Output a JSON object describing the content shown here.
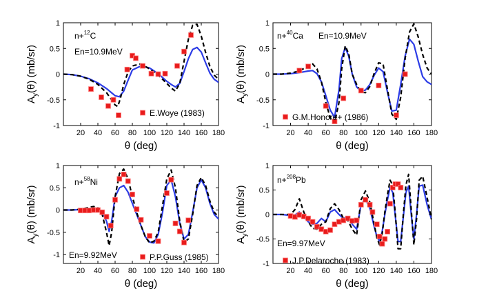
{
  "chart_data": [
    {
      "type": "line",
      "nucleus": "n+",
      "nucleus_mass": "12",
      "nucleus_symbol": "C",
      "energy_label": "En=10.9MeV",
      "legend": "E.Woye (1983)",
      "xlabel": "θ (deg)",
      "ylabel_main": "A",
      "ylabel_sub": "y",
      "ylabel_rest": "(θ) (mb/sr)",
      "xlim": [
        0,
        180
      ],
      "ylim": [
        -1,
        1
      ],
      "xticks": [
        20,
        40,
        60,
        80,
        100,
        120,
        140,
        160,
        180
      ],
      "yticks": [
        -1,
        -0.5,
        0,
        0.5,
        1
      ],
      "series": [
        {
          "name": "blue solid",
          "x": [
            0,
            10,
            20,
            30,
            40,
            50,
            55,
            60,
            65,
            70,
            75,
            80,
            90,
            100,
            110,
            120,
            125,
            130,
            135,
            140,
            145,
            150,
            155,
            160,
            165,
            170,
            175,
            180
          ],
          "y": [
            0,
            -0.01,
            -0.04,
            -0.09,
            -0.17,
            -0.28,
            -0.35,
            -0.42,
            -0.44,
            -0.33,
            -0.12,
            0.08,
            0.16,
            0.12,
            0.01,
            -0.14,
            -0.2,
            -0.25,
            -0.18,
            0.05,
            0.3,
            0.48,
            0.52,
            0.43,
            0.22,
            0.02,
            -0.1,
            -0.16
          ]
        },
        {
          "name": "black dashed",
          "x": [
            0,
            10,
            20,
            30,
            40,
            50,
            55,
            60,
            63,
            66,
            70,
            75,
            80,
            90,
            100,
            110,
            120,
            125,
            130,
            135,
            140,
            145,
            150,
            155,
            160,
            165,
            170,
            175,
            180
          ],
          "y": [
            0,
            -0.01,
            -0.04,
            -0.1,
            -0.2,
            -0.36,
            -0.48,
            -0.6,
            -0.63,
            -0.48,
            -0.2,
            0.04,
            0.16,
            0.2,
            0.1,
            -0.02,
            -0.18,
            -0.27,
            -0.33,
            -0.18,
            0.25,
            0.68,
            0.95,
            0.97,
            0.74,
            0.42,
            0.15,
            -0.02,
            -0.1
          ]
        },
        {
          "name": "E.Woye (1983)",
          "x": [
            32,
            44,
            52,
            58,
            64,
            74,
            80,
            84,
            92,
            102,
            110,
            118,
            132,
            140,
            148
          ],
          "y": [
            -0.29,
            -0.45,
            -0.62,
            -0.5,
            -0.8,
            0.09,
            0.36,
            0.31,
            0.16,
            0.01,
            0.0,
            0.01,
            0.16,
            0.44,
            0.76
          ]
        }
      ]
    },
    {
      "type": "line",
      "nucleus": "n+",
      "nucleus_mass": "40",
      "nucleus_symbol": "Ca",
      "energy_label": "En=10.9MeV",
      "legend": "G.M.Honore+ (1986)",
      "xlabel": "θ (deg)",
      "ylabel_main": "A",
      "ylabel_sub": "y",
      "ylabel_rest": "(θ) (mb/sr)",
      "xlim": [
        0,
        180
      ],
      "ylim": [
        -1,
        1
      ],
      "xticks": [
        20,
        40,
        60,
        80,
        100,
        120,
        140,
        160,
        180
      ],
      "yticks": [
        -1,
        -0.5,
        0,
        0.5,
        1
      ],
      "series": [
        {
          "name": "blue solid",
          "x": [
            0,
            10,
            20,
            30,
            40,
            45,
            50,
            55,
            60,
            65,
            70,
            75,
            78,
            82,
            86,
            90,
            95,
            100,
            105,
            110,
            115,
            120,
            125,
            130,
            135,
            140,
            145,
            150,
            155,
            160,
            165,
            170,
            175,
            180
          ],
          "y": [
            0,
            0,
            0.01,
            0.03,
            0.06,
            0.07,
            0.01,
            -0.15,
            -0.42,
            -0.7,
            -0.84,
            -0.3,
            0.3,
            0.52,
            0.35,
            0.0,
            -0.25,
            -0.33,
            -0.31,
            -0.2,
            -0.02,
            0.12,
            0.05,
            -0.35,
            -0.72,
            -0.7,
            -0.2,
            0.35,
            0.68,
            0.58,
            0.25,
            -0.05,
            -0.15,
            -0.2
          ]
        },
        {
          "name": "black dashed",
          "x": [
            0,
            10,
            20,
            30,
            40,
            45,
            50,
            55,
            60,
            65,
            70,
            75,
            78,
            82,
            86,
            90,
            95,
            100,
            105,
            110,
            115,
            120,
            125,
            130,
            135,
            140,
            145,
            150,
            155,
            160,
            165,
            170,
            175,
            180
          ],
          "y": [
            0,
            0,
            0.02,
            0.06,
            0.16,
            0.2,
            0.1,
            -0.15,
            -0.55,
            -0.85,
            -0.95,
            -0.55,
            0.1,
            0.55,
            0.4,
            0.0,
            -0.2,
            -0.35,
            -0.36,
            -0.24,
            0.02,
            0.22,
            0.2,
            -0.3,
            -0.78,
            -0.88,
            -0.45,
            0.3,
            0.82,
            0.98,
            0.72,
            0.38,
            0.12,
            0.0
          ]
        },
        {
          "name": "G.M.Honore+ (1986)",
          "x": [
            30,
            40,
            60,
            70,
            80,
            100,
            120,
            140,
            150
          ],
          "y": [
            0.07,
            0.15,
            -0.62,
            -0.92,
            -0.47,
            -0.32,
            -0.22,
            -0.8,
            0.0
          ]
        }
      ]
    },
    {
      "type": "line",
      "nucleus": "n+",
      "nucleus_mass": "58",
      "nucleus_symbol": "Ni",
      "energy_label": "En=9.92MeV",
      "legend": "P.P.Guss (1985)",
      "xlabel": "θ (deg)",
      "ylabel_main": "A",
      "ylabel_sub": "y",
      "ylabel_rest": "(θ) (mb/sr)",
      "xlim": [
        0,
        180
      ],
      "ylim": [
        -1.2,
        1
      ],
      "xticks": [
        20,
        40,
        60,
        80,
        100,
        120,
        140,
        160,
        180
      ],
      "yticks": [
        -1,
        -0.5,
        0,
        0.5,
        1
      ],
      "series": [
        {
          "name": "blue solid",
          "x": [
            0,
            10,
            20,
            30,
            35,
            40,
            45,
            50,
            53,
            56,
            60,
            65,
            70,
            75,
            80,
            85,
            90,
            95,
            100,
            105,
            110,
            115,
            120,
            125,
            130,
            135,
            140,
            145,
            150,
            155,
            160,
            165,
            170,
            175,
            180
          ],
          "y": [
            0,
            0,
            0.01,
            0.03,
            0.04,
            0.03,
            -0.05,
            -0.25,
            -0.48,
            -0.25,
            0.3,
            0.5,
            0.55,
            0.4,
            0.15,
            -0.1,
            -0.35,
            -0.6,
            -0.72,
            -0.74,
            -0.55,
            -0.05,
            0.55,
            0.68,
            0.3,
            -0.3,
            -0.65,
            -0.55,
            -0.05,
            0.5,
            0.68,
            0.5,
            0.15,
            -0.1,
            -0.2
          ]
        },
        {
          "name": "black dashed",
          "x": [
            0,
            10,
            20,
            30,
            35,
            40,
            45,
            50,
            53,
            56,
            60,
            65,
            70,
            75,
            80,
            85,
            90,
            95,
            100,
            105,
            110,
            115,
            120,
            125,
            130,
            135,
            140,
            145,
            150,
            155,
            160,
            165,
            170,
            175,
            180
          ],
          "y": [
            0,
            0,
            0.02,
            0.06,
            0.08,
            0.05,
            -0.1,
            -0.5,
            -0.8,
            -0.5,
            0.3,
            0.82,
            0.92,
            0.7,
            0.3,
            -0.05,
            -0.35,
            -0.6,
            -0.74,
            -0.7,
            -0.5,
            0.1,
            0.7,
            0.9,
            0.5,
            -0.25,
            -0.72,
            -0.65,
            -0.1,
            0.55,
            0.73,
            0.55,
            0.2,
            -0.05,
            -0.15
          ]
        },
        {
          "name": "P.P.Guss (1985)",
          "x": [
            20,
            25,
            30,
            35,
            40,
            45,
            50,
            55,
            60,
            65,
            70,
            75,
            80,
            85,
            90,
            100,
            110,
            120,
            125,
            130,
            135,
            140,
            145
          ],
          "y": [
            -0.01,
            -0.01,
            -0.01,
            0.0,
            0.0,
            -0.05,
            -0.15,
            -0.35,
            0.23,
            0.7,
            0.8,
            0.65,
            0.35,
            0.02,
            -0.22,
            -0.58,
            -0.7,
            0.38,
            0.68,
            -0.3,
            -0.48,
            -0.73,
            -0.23
          ]
        }
      ]
    },
    {
      "type": "line",
      "nucleus": "n+",
      "nucleus_mass": "208",
      "nucleus_symbol": "Pb",
      "energy_label": "En=9.97MeV",
      "legend": "J.P.Delaroche (1983)",
      "xlabel": "θ (deg)",
      "ylabel_main": "A",
      "ylabel_sub": "y",
      "ylabel_rest": "(θ) (mb/sr)",
      "xlim": [
        0,
        180
      ],
      "ylim": [
        -1,
        1
      ],
      "xticks": [
        20,
        40,
        60,
        80,
        100,
        120,
        140,
        160,
        180
      ],
      "yticks": [
        -1,
        -0.5,
        0,
        0.5,
        1
      ],
      "series": [
        {
          "name": "blue solid",
          "x": [
            0,
            10,
            20,
            25,
            30,
            35,
            40,
            45,
            50,
            55,
            60,
            65,
            70,
            75,
            80,
            85,
            90,
            95,
            100,
            105,
            110,
            115,
            118,
            121,
            124,
            127,
            130,
            133,
            136,
            139,
            142,
            145,
            148,
            151,
            154,
            157,
            160,
            163,
            166,
            170,
            175,
            180
          ],
          "y": [
            0,
            0,
            -0.02,
            -0.01,
            0.05,
            -0.05,
            -0.15,
            -0.2,
            -0.18,
            -0.08,
            -0.15,
            0.05,
            0.1,
            0.0,
            -0.08,
            -0.05,
            -0.2,
            -0.3,
            0.2,
            0.32,
            0.12,
            -0.25,
            -0.45,
            -0.55,
            -0.35,
            0.0,
            0.3,
            0.55,
            0.45,
            -0.05,
            -0.55,
            -0.55,
            -0.05,
            0.45,
            0.58,
            0.0,
            -0.5,
            0.0,
            0.58,
            0.6,
            0.2,
            -0.1
          ]
        },
        {
          "name": "black dashed",
          "x": [
            0,
            10,
            20,
            25,
            30,
            35,
            40,
            45,
            50,
            55,
            60,
            65,
            70,
            75,
            80,
            85,
            90,
            95,
            100,
            105,
            110,
            115,
            118,
            121,
            124,
            127,
            130,
            133,
            136,
            139,
            142,
            145,
            148,
            151,
            154,
            157,
            160,
            163,
            166,
            170,
            175,
            180
          ],
          "y": [
            0,
            0,
            0.0,
            0.1,
            0.32,
            0.05,
            -0.15,
            -0.28,
            -0.3,
            -0.2,
            -0.15,
            0.12,
            0.22,
            0.1,
            -0.08,
            -0.12,
            -0.3,
            -0.42,
            0.3,
            0.48,
            0.25,
            -0.2,
            -0.48,
            -0.62,
            -0.4,
            0.05,
            0.4,
            0.7,
            0.6,
            0.0,
            -0.7,
            -0.7,
            0.0,
            0.6,
            0.82,
            0.1,
            -0.62,
            -0.1,
            0.7,
            0.78,
            0.35,
            -0.1
          ]
        },
        {
          "name": "J.P.Delaroche (1983)",
          "x": [
            20,
            25,
            30,
            35,
            40,
            45,
            50,
            55,
            60,
            65,
            70,
            75,
            80,
            85,
            90,
            95,
            100,
            105,
            110,
            113,
            118,
            121,
            124,
            127,
            130,
            133,
            136,
            139,
            142,
            145
          ],
          "y": [
            -0.03,
            -0.05,
            -0.01,
            -0.04,
            -0.08,
            -0.15,
            -0.25,
            -0.3,
            -0.35,
            -0.32,
            -0.2,
            -0.15,
            -0.12,
            -0.08,
            -0.13,
            -0.12,
            0.2,
            0.3,
            0.2,
            0.05,
            -0.2,
            -0.45,
            -0.6,
            -0.5,
            -0.35,
            0.22,
            0.55,
            0.62,
            0.62,
            0.55
          ]
        }
      ]
    }
  ]
}
